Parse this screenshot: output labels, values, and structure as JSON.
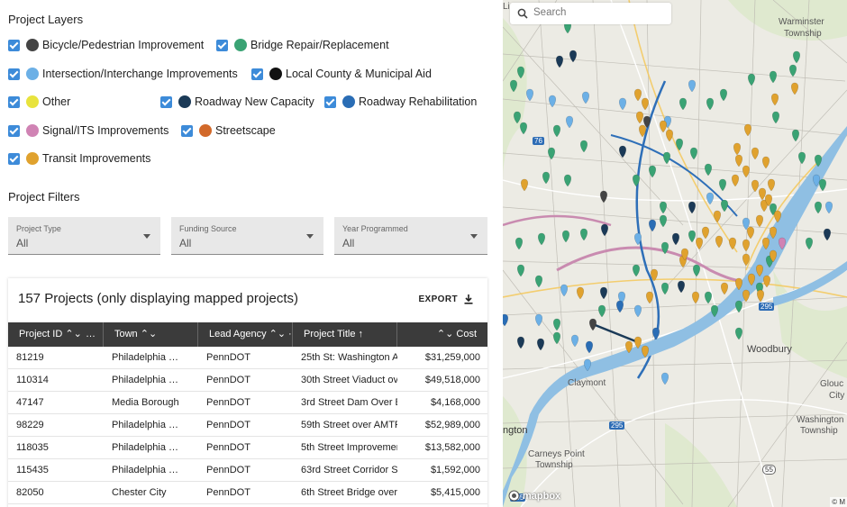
{
  "layers_title": "Project Layers",
  "layers": [
    {
      "label": "Bicycle/Pedestrian Improvement",
      "color": "#444444"
    },
    {
      "label": "Bridge Repair/Replacement",
      "color": "#3aa374"
    },
    {
      "label": "Intersection/Interchange Improvements",
      "color": "#6cb0e6"
    },
    {
      "label": "Local County & Municipal Aid",
      "color": "#111111"
    },
    {
      "label": "Other",
      "color": "#e8e33d"
    },
    {
      "label": "Roadway New Capacity",
      "color": "#1b3a57"
    },
    {
      "label": "Roadway Rehabilitation",
      "color": "#2a6db5"
    },
    {
      "label": "Signal/ITS Improvements",
      "color": "#d083b4"
    },
    {
      "label": "Streetscape",
      "color": "#d2692a"
    },
    {
      "label": "Transit Improvements",
      "color": "#e0a22e"
    }
  ],
  "filters_title": "Project Filters",
  "filters": [
    {
      "label": "Project Type",
      "value": "All"
    },
    {
      "label": "Funding Source",
      "value": "All"
    },
    {
      "label": "Year Programmed",
      "value": "All"
    }
  ],
  "table": {
    "title": "157 Projects (only displaying mapped projects)",
    "export_label": "EXPORT",
    "columns": [
      "Project ID ⌃⌄",
      "Town ⌃⌄",
      "Lead Agency ⌃⌄",
      "Project Title ↑",
      "⌃⌄ Cost"
    ],
    "column_more": "…",
    "column_more_2": "·",
    "rows": [
      [
        "81219",
        "Philadelphia …",
        "PennDOT",
        "25th St: Washington Av",
        "$31,259,000"
      ],
      [
        "110314",
        "Philadelphia …",
        "PennDOT",
        "30th Street Viaduct ove",
        "$49,518,000"
      ],
      [
        "47147",
        "Media Borough",
        "PennDOT",
        "3rd Street Dam Over Bl",
        "$4,168,000"
      ],
      [
        "98229",
        "Philadelphia …",
        "PennDOT",
        "59th Street over AMTRA",
        "$52,989,000"
      ],
      [
        "118035",
        "Philadelphia …",
        "PennDOT",
        "5th Street Improvemen",
        "$13,582,000"
      ],
      [
        "115435",
        "Philadelphia …",
        "PennDOT",
        "63rd Street Corridor Sa",
        "$1,592,000"
      ],
      [
        "82050",
        "Chester City",
        "PennDOT",
        "6th Street Bridge over",
        "$5,415,000"
      ]
    ]
  },
  "map": {
    "search_placeholder": "Search",
    "labels": {
      "warminster": "Warminster",
      "township1": "Township",
      "woodbury": "Woodbury",
      "claymont": "Claymont",
      "gloucester": "Glouc",
      "city": "City",
      "washington": "Washington",
      "township2": "Township",
      "ington": "ngton",
      "carneys": "Carneys Point",
      "township3": "Township",
      "li": "Li",
      "r76": "76",
      "r295a": "295",
      "r295b": "295",
      "r295c": "295",
      "r55": "55"
    },
    "logo_text": "mapbox",
    "attribution": "© M"
  }
}
